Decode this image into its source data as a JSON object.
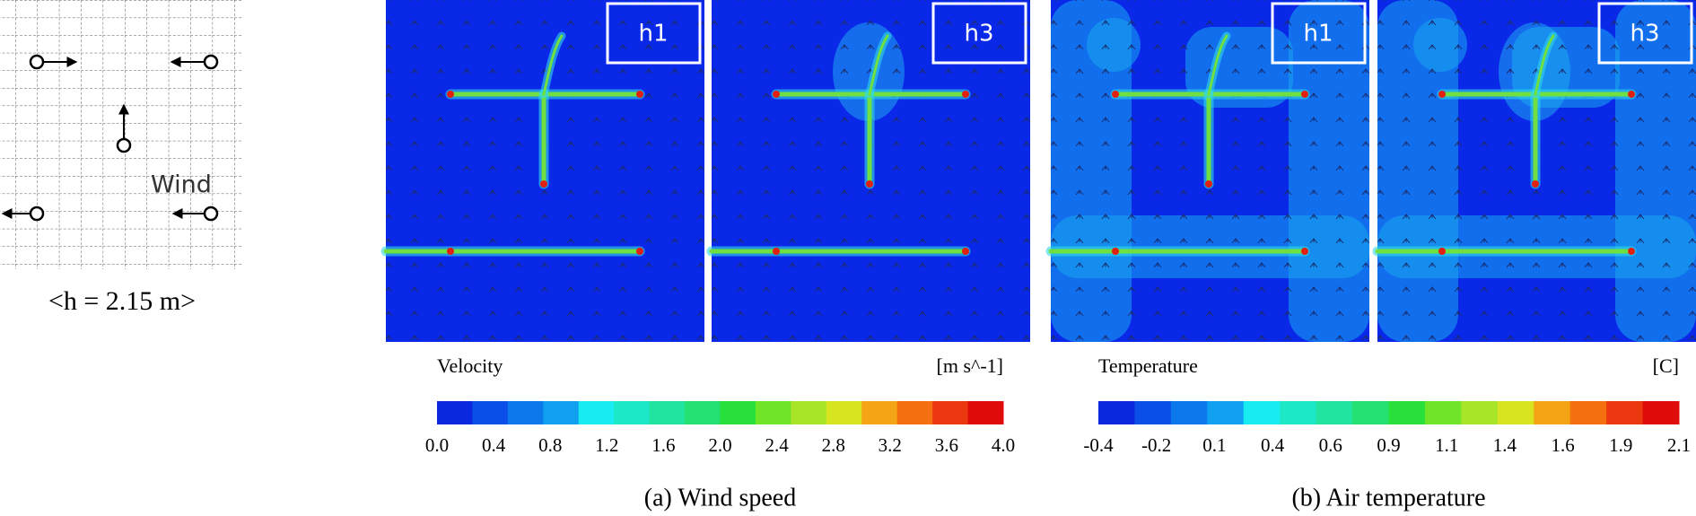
{
  "diagram": {
    "wind_label": "Wind",
    "height_label": "<h = 2.15 m>"
  },
  "panels": [
    {
      "caption": "(a) Wind speed",
      "maps": [
        {
          "label": "h1"
        },
        {
          "label": "h3"
        }
      ],
      "colorbar": {
        "title": "Velocity",
        "unit": "[m s^-1]",
        "ticks": [
          "0.0",
          "0.4",
          "0.8",
          "1.2",
          "1.6",
          "2.0",
          "2.4",
          "2.8",
          "3.2",
          "3.6",
          "4.0"
        ]
      }
    },
    {
      "caption": "(b) Air temperature",
      "maps": [
        {
          "label": "h1"
        },
        {
          "label": "h3"
        }
      ],
      "colorbar": {
        "title": "Temperature",
        "unit": "[C]",
        "ticks": [
          "-0.4",
          "-0.2",
          "0.1",
          "0.4",
          "0.6",
          "0.9",
          "1.1",
          "1.4",
          "1.6",
          "1.9",
          "2.1"
        ]
      }
    }
  ]
}
